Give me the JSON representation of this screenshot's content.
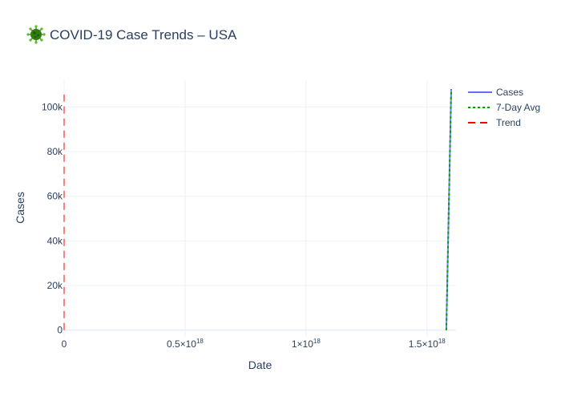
{
  "chart_data": {
    "type": "line",
    "title_icon": "virus-icon",
    "title": "COVID-19 Case Trends – USA",
    "xlabel": "Date",
    "ylabel": "Cases",
    "xlim": [
      0,
      1.62e+18
    ],
    "ylim": [
      -3000,
      112000
    ],
    "x_ticks": [
      {
        "value": 0,
        "mantissa": "0",
        "exp": ""
      },
      {
        "value": 5e+17,
        "mantissa": "0.5×10",
        "exp": "18"
      },
      {
        "value": 1e+18,
        "mantissa": "1×10",
        "exp": "18"
      },
      {
        "value": 1.5e+18,
        "mantissa": "1.5×10",
        "exp": "18"
      }
    ],
    "y_ticks": [
      {
        "value": 0,
        "label": "0"
      },
      {
        "value": 20000,
        "label": "20k"
      },
      {
        "value": 40000,
        "label": "40k"
      },
      {
        "value": 60000,
        "label": "60k"
      },
      {
        "value": 80000,
        "label": "80k"
      },
      {
        "value": 100000,
        "label": "100k"
      }
    ],
    "grid": true,
    "legend_position": "top-right",
    "series": [
      {
        "name": "Cases",
        "color": "#636efa",
        "dash": "solid",
        "x": [
          1.58e+18,
          1.6e+18
        ],
        "y": [
          0,
          108000
        ]
      },
      {
        "name": "7-Day Avg",
        "color": "#00a000",
        "dash": "dot",
        "x": [
          1.58e+18,
          1.6e+18
        ],
        "y": [
          0,
          108000
        ]
      },
      {
        "name": "Trend",
        "color": "#ff0000",
        "dash": "dash",
        "x": [
          0,
          0
        ],
        "y": [
          0,
          106000
        ]
      }
    ]
  }
}
